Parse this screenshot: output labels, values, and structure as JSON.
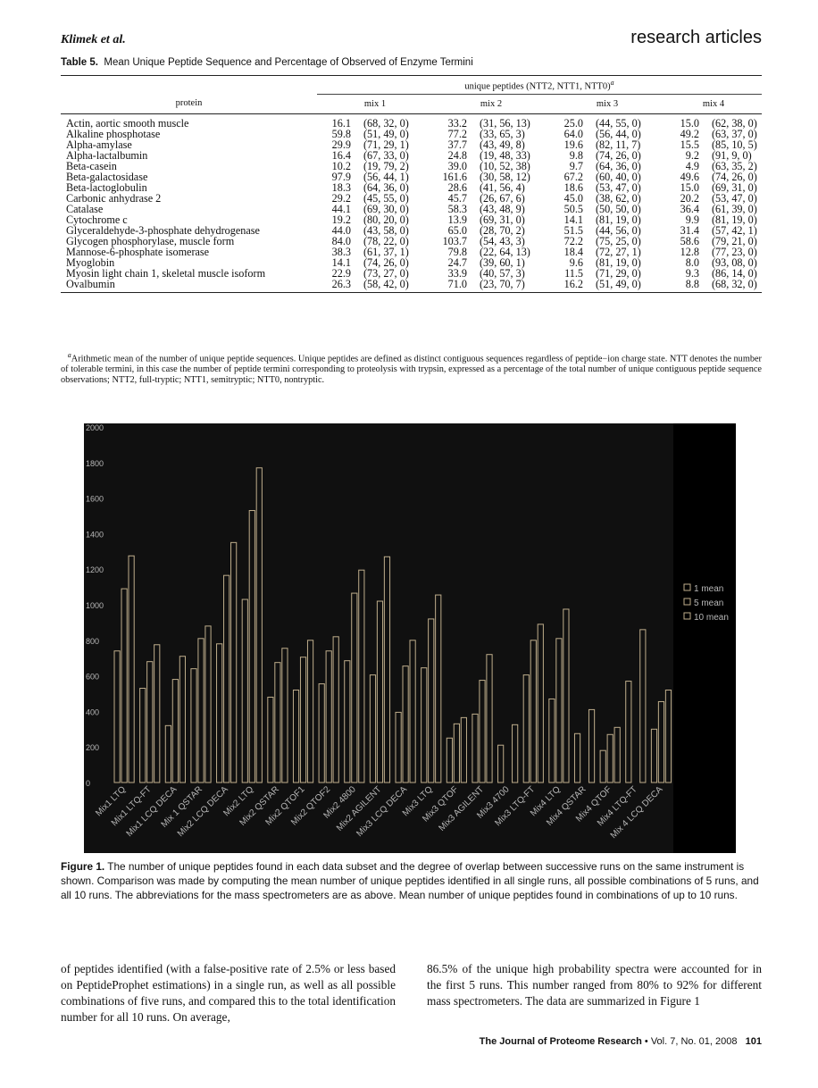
{
  "header": {
    "author": "Klimek et al.",
    "section": "research articles"
  },
  "table": {
    "label": "Table 5.",
    "title": "Mean Unique Peptide Sequence and Percentage of Observed of Enzyme Termini",
    "group_header": "unique peptides (NTT2, NTT1, NTT0)",
    "group_header_note": "a",
    "col_protein": "protein",
    "mix_labels": [
      "mix 1",
      "mix 2",
      "mix 3",
      "mix 4"
    ],
    "rows": [
      [
        "Actin, aortic smooth muscle",
        "16.1",
        "(68, 32, 0)",
        "33.2",
        "(31, 56, 13)",
        "25.0",
        "(44, 55, 0)",
        "15.0",
        "(62, 38, 0)"
      ],
      [
        "Alkaline phosphotase",
        "59.8",
        "(51, 49, 0)",
        "77.2",
        "(33, 65, 3)",
        "64.0",
        "(56, 44, 0)",
        "49.2",
        "(63, 37, 0)"
      ],
      [
        "Alpha-amylase",
        "29.9",
        "(71, 29, 1)",
        "37.7",
        "(43, 49, 8)",
        "19.6",
        "(82, 11, 7)",
        "15.5",
        "(85, 10, 5)"
      ],
      [
        "Alpha-lactalbumin",
        "16.4",
        "(67, 33, 0)",
        "24.8",
        "(19, 48, 33)",
        "9.8",
        "(74, 26, 0)",
        "9.2",
        "(91, 9, 0)"
      ],
      [
        "Beta-casein",
        "10.2",
        "(19, 79, 2)",
        "39.0",
        "(10, 52, 38)",
        "9.7",
        "(64, 36, 0)",
        "4.9",
        "(63, 35, 2)"
      ],
      [
        "Beta-galactosidase",
        "97.9",
        "(56, 44, 1)",
        "161.6",
        "(30, 58, 12)",
        "67.2",
        "(60, 40, 0)",
        "49.6",
        "(74, 26, 0)"
      ],
      [
        "Beta-lactoglobulin",
        "18.3",
        "(64, 36, 0)",
        "28.6",
        "(41, 56, 4)",
        "18.6",
        "(53, 47, 0)",
        "15.0",
        "(69, 31, 0)"
      ],
      [
        "Carbonic anhydrase 2",
        "29.2",
        "(45, 55, 0)",
        "45.7",
        "(26, 67, 6)",
        "45.0",
        "(38, 62, 0)",
        "20.2",
        "(53, 47, 0)"
      ],
      [
        "Catalase",
        "44.1",
        "(69, 30, 0)",
        "58.3",
        "(43, 48, 9)",
        "50.5",
        "(50, 50, 0)",
        "36.4",
        "(61, 39, 0)"
      ],
      [
        "Cytochrome c",
        "19.2",
        "(80, 20, 0)",
        "13.9",
        "(69, 31, 0)",
        "14.1",
        "(81, 19, 0)",
        "9.9",
        "(81, 19, 0)"
      ],
      [
        "Glyceraldehyde-3-phosphate dehydrogenase",
        "44.0",
        "(43, 58, 0)",
        "65.0",
        "(28, 70, 2)",
        "51.5",
        "(44, 56, 0)",
        "31.4",
        "(57, 42, 1)"
      ],
      [
        "Glycogen phosphorylase, muscle form",
        "84.0",
        "(78, 22, 0)",
        "103.7",
        "(54, 43, 3)",
        "72.2",
        "(75, 25, 0)",
        "58.6",
        "(79, 21, 0)"
      ],
      [
        "Mannose-6-phosphate isomerase",
        "38.3",
        "(61, 37, 1)",
        "79.8",
        "(22, 64, 13)",
        "18.4",
        "(72, 27, 1)",
        "12.8",
        "(77, 23, 0)"
      ],
      [
        "Myoglobin",
        "14.1",
        "(74, 26, 0)",
        "24.7",
        "(39, 60, 1)",
        "9.6",
        "(81, 19, 0)",
        "8.0",
        "(93, 08, 0)"
      ],
      [
        "Myosin light chain 1, skeletal muscle isoform",
        "22.9",
        "(73, 27, 0)",
        "33.9",
        "(40, 57, 3)",
        "11.5",
        "(71, 29, 0)",
        "9.3",
        "(86, 14, 0)"
      ],
      [
        "Ovalbumin",
        "26.3",
        "(58, 42, 0)",
        "71.0",
        "(23, 70, 7)",
        "16.2",
        "(51, 49, 0)",
        "8.8",
        "(68, 32, 0)"
      ]
    ],
    "footnote_mark": "a",
    "footnote": "Arithmetic mean of the number of unique peptide sequences. Unique peptides are defined as distinct contiguous sequences regardless of peptide−ion charge state. NTT denotes the number of tolerable termini, in this case the number of peptide termini corresponding to proteolysis with trypsin, expressed as a percentage of the total number of unique contiguous peptide sequence observations; NTT2, full-tryptic; NTT1, semitryptic; NTT0, nontryptic."
  },
  "chart_data": {
    "type": "bar",
    "categories": [
      "Mix1 LTQ",
      "Mix1 LTQ-FT",
      "Mix1 LCQ DECA",
      "Mix 1 QSTAR",
      "Mix2 LCQ DECA",
      "Mix2 LTQ",
      "Mix2 QSTAR",
      "Mix2 QTOF1",
      "Mix2 QTOF2",
      "Mix2 4800",
      "Mix2 AGILENT",
      "Mix3 LCQ DECA",
      "Mix3 LTQ",
      "Mix3 QTOF",
      "Mix3 AGILENT",
      "Mix3 4700",
      "Mix3 LTQ-FT",
      "Mix4 LTQ",
      "Mix4 QSTAR",
      "Mix4 QTOF",
      "Mix4 LTQ-FT",
      "Mix 4 LCQ DECA"
    ],
    "series": [
      {
        "name": "1 mean",
        "values": [
          740,
          530,
          320,
          640,
          780,
          1030,
          480,
          520,
          555,
          685,
          605,
          395,
          645,
          250,
          385,
          210,
          605,
          470,
          275,
          180,
          570,
          300
        ]
      },
      {
        "name": "5 mean",
        "values": [
          1090,
          680,
          580,
          810,
          1165,
          1530,
          675,
          705,
          740,
          1065,
          1020,
          655,
          920,
          330,
          575,
          0,
          800,
          810,
          0,
          270,
          0,
          455
        ]
      },
      {
        "name": "10 mean",
        "values": [
          1275,
          775,
          710,
          880,
          1350,
          1770,
          755,
          800,
          820,
          1195,
          1270,
          800,
          1055,
          365,
          720,
          325,
          890,
          975,
          410,
          310,
          860,
          520
        ]
      }
    ],
    "ylim": [
      0,
      2000
    ],
    "yticks": [
      0,
      200,
      400,
      600,
      800,
      1000,
      1200,
      1400,
      1600,
      1800,
      2000
    ],
    "legend_position": "right",
    "grid": false,
    "colors": {
      "background": "#000000",
      "plot_background": "#101010",
      "bar_stroke": "#bfae8c",
      "axis_text": "#b8b8b8"
    }
  },
  "figure": {
    "label": "Figure 1.",
    "caption": "The number of unique peptides found in each data subset and the degree of overlap between successive runs on the same instrument is shown. Comparison was made by computing the mean number of unique peptides identified in all single runs, all possible combinations of 5 runs, and all 10 runs. The abbreviations for the mass spectrometers are as above. Mean number of unique peptides found in combinations of up to 10 runs."
  },
  "body": {
    "left": "of peptides identified (with a false-positive rate of 2.5% or less based on PeptideProphet estimations) in a single run, as well as all possible combinations of five runs, and compared this to the total identification number for all 10 runs. On average,",
    "right": "86.5% of the unique high probability spectra were accounted for in the first 5 runs. This number ranged from 80% to 92% for different mass spectrometers. The data are summarized in Figure 1"
  },
  "footer": {
    "journal": "The Journal of Proteome Research",
    "bullet": "•",
    "volume": "Vol. 7, No. 01, 2008",
    "page": "101"
  }
}
